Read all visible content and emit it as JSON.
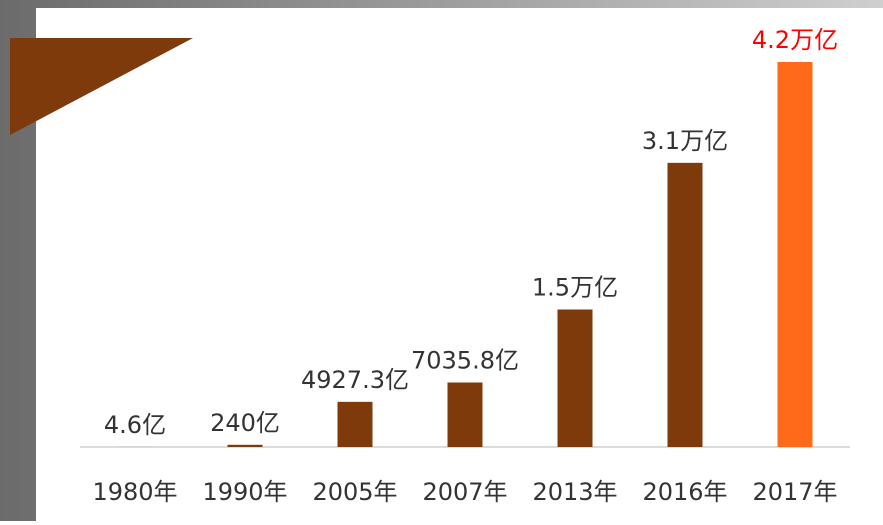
{
  "chart_data": {
    "type": "bar",
    "categories": [
      "1980年",
      "1990年",
      "2005年",
      "2007年",
      "2013年",
      "2016年",
      "2017年"
    ],
    "values": [
      4.6,
      240,
      4927.3,
      7035.8,
      15000,
      31000,
      42000
    ],
    "value_labels": [
      "4.6亿",
      "240亿",
      "4927.3亿",
      "7035.8亿",
      "1.5万亿",
      "3.1万亿",
      "4.2万亿"
    ],
    "colors": [
      "#7f3a0c",
      "#7f3a0c",
      "#7f3a0c",
      "#7f3a0c",
      "#7f3a0c",
      "#7f3a0c",
      "#ff6a1a"
    ],
    "label_colors": [
      "#333333",
      "#333333",
      "#333333",
      "#333333",
      "#333333",
      "#333333",
      "#ff0000"
    ]
  }
}
